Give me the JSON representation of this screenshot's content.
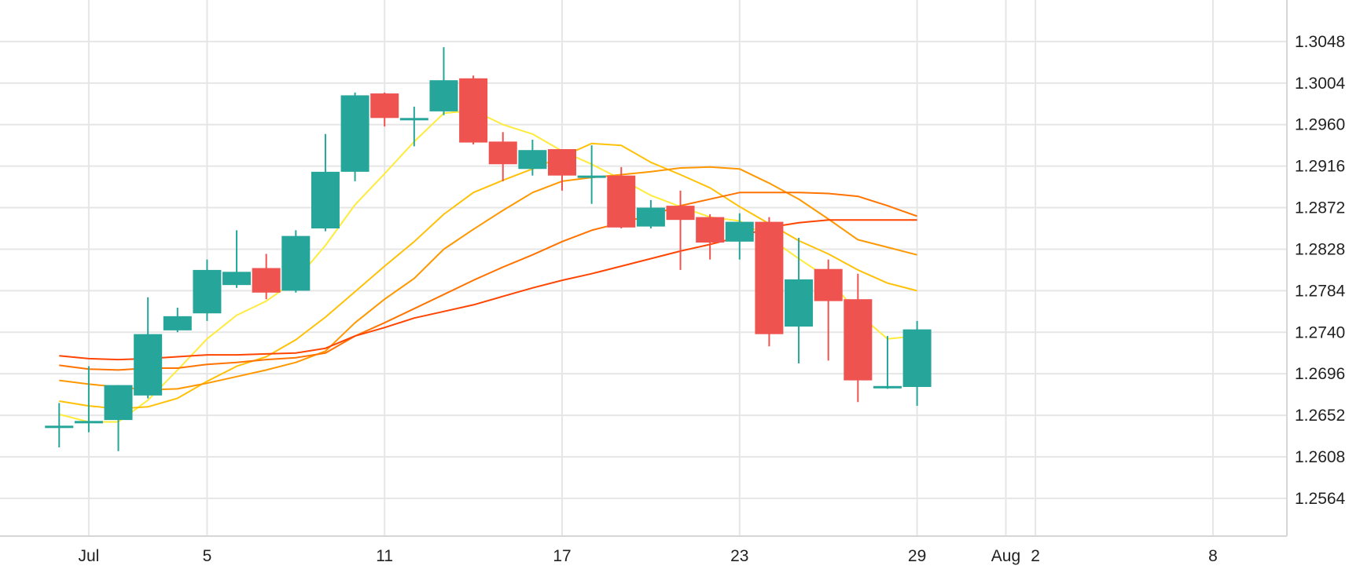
{
  "chart_data": {
    "type": "candlestick",
    "y_ticks": [
      "1.3048",
      "1.3004",
      "1.2960",
      "1.2916",
      "1.2872",
      "1.2828",
      "1.2784",
      "1.2740",
      "1.2696",
      "1.2652",
      "1.2608",
      "1.2564"
    ],
    "ylim": [
      1.2524,
      1.3092
    ],
    "x_ticks": [
      {
        "label": "Jul",
        "day": 1
      },
      {
        "label": "5",
        "day": 5
      },
      {
        "label": "11",
        "day": 11
      },
      {
        "label": "17",
        "day": 17
      },
      {
        "label": "23",
        "day": 23
      },
      {
        "label": "29",
        "day": 29
      },
      {
        "label": "Aug",
        "day": 32
      },
      {
        "label": "2",
        "day": 33
      },
      {
        "label": "8",
        "day": 39
      }
    ],
    "xlim": [
      -2,
      41.5
    ],
    "grid": true,
    "colors": {
      "up": "#26a69a",
      "down": "#ef5350",
      "grid": "#e6e6e6",
      "axis": "#d6d6d6"
    },
    "candles": [
      {
        "day": 0,
        "o": 1.2641,
        "h": 1.2665,
        "l": 1.2618,
        "c": 1.2641
      },
      {
        "day": 1,
        "o": 1.2646,
        "h": 1.2704,
        "l": 1.2634,
        "c": 1.2646
      },
      {
        "day": 2,
        "o": 1.2647,
        "h": 1.2684,
        "l": 1.2614,
        "c": 1.2684
      },
      {
        "day": 3,
        "o": 1.2673,
        "h": 1.2777,
        "l": 1.267,
        "c": 1.2738
      },
      {
        "day": 4,
        "o": 1.2742,
        "h": 1.2766,
        "l": 1.274,
        "c": 1.2757
      },
      {
        "day": 5,
        "o": 1.276,
        "h": 1.2817,
        "l": 1.2752,
        "c": 1.2806
      },
      {
        "day": 6,
        "o": 1.279,
        "h": 1.2848,
        "l": 1.2787,
        "c": 1.2804
      },
      {
        "day": 7,
        "o": 1.2808,
        "h": 1.2823,
        "l": 1.2775,
        "c": 1.2782
      },
      {
        "day": 8,
        "o": 1.2784,
        "h": 1.2848,
        "l": 1.2782,
        "c": 1.2842
      },
      {
        "day": 9,
        "o": 1.285,
        "h": 1.295,
        "l": 1.2847,
        "c": 1.291
      },
      {
        "day": 10,
        "o": 1.291,
        "h": 1.2994,
        "l": 1.29,
        "c": 1.2991
      },
      {
        "day": 11,
        "o": 1.2993,
        "h": 1.2994,
        "l": 1.2958,
        "c": 1.2967
      },
      {
        "day": 12,
        "o": 1.2967,
        "h": 1.2979,
        "l": 1.2937,
        "c": 1.2967
      },
      {
        "day": 13,
        "o": 1.2974,
        "h": 1.3042,
        "l": 1.297,
        "c": 1.3007
      },
      {
        "day": 14,
        "o": 1.3009,
        "h": 1.3012,
        "l": 1.2939,
        "c": 1.2941
      },
      {
        "day": 15,
        "o": 1.2942,
        "h": 1.2952,
        "l": 1.29,
        "c": 1.2918
      },
      {
        "day": 16,
        "o": 1.2913,
        "h": 1.2944,
        "l": 1.2906,
        "c": 1.2933
      },
      {
        "day": 17,
        "o": 1.2934,
        "h": 1.2934,
        "l": 1.289,
        "c": 1.2906
      },
      {
        "day": 18,
        "o": 1.2906,
        "h": 1.2938,
        "l": 1.2876,
        "c": 1.2906
      },
      {
        "day": 19,
        "o": 1.2906,
        "h": 1.2915,
        "l": 1.285,
        "c": 1.2851
      },
      {
        "day": 20,
        "o": 1.2852,
        "h": 1.288,
        "l": 1.285,
        "c": 1.2872
      },
      {
        "day": 21,
        "o": 1.2874,
        "h": 1.289,
        "l": 1.2806,
        "c": 1.2859
      },
      {
        "day": 22,
        "o": 1.2862,
        "h": 1.2865,
        "l": 1.2817,
        "c": 1.2835
      },
      {
        "day": 23,
        "o": 1.2836,
        "h": 1.2866,
        "l": 1.2817,
        "c": 1.2857
      },
      {
        "day": 24,
        "o": 1.2857,
        "h": 1.2862,
        "l": 1.2725,
        "c": 1.2738
      },
      {
        "day": 25,
        "o": 1.2746,
        "h": 1.284,
        "l": 1.2707,
        "c": 1.2796
      },
      {
        "day": 26,
        "o": 1.2807,
        "h": 1.2817,
        "l": 1.271,
        "c": 1.2773
      },
      {
        "day": 27,
        "o": 1.2775,
        "h": 1.2802,
        "l": 1.2666,
        "c": 1.2689
      },
      {
        "day": 28,
        "o": 1.2683,
        "h": 1.2736,
        "l": 1.268,
        "c": 1.2683
      },
      {
        "day": 29,
        "o": 1.2682,
        "h": 1.2752,
        "l": 1.2662,
        "c": 1.2743
      }
    ],
    "moving_averages": [
      {
        "color": "#ffeb3b",
        "points": [
          [
            0,
            1.2653
          ],
          [
            1,
            1.2645
          ],
          [
            2,
            1.2645
          ],
          [
            3,
            1.2668
          ],
          [
            4,
            1.27
          ],
          [
            5,
            1.2733
          ],
          [
            6,
            1.2758
          ],
          [
            7,
            1.2773
          ],
          [
            8,
            1.2795
          ],
          [
            9,
            1.2832
          ],
          [
            10,
            1.2875
          ],
          [
            11,
            1.2908
          ],
          [
            12,
            1.2942
          ],
          [
            13,
            1.2972
          ],
          [
            14,
            1.2975
          ],
          [
            15,
            1.296
          ],
          [
            16,
            1.295
          ],
          [
            17,
            1.2932
          ],
          [
            18,
            1.2918
          ],
          [
            19,
            1.2902
          ],
          [
            20,
            1.2885
          ],
          [
            21,
            1.2873
          ],
          [
            22,
            1.2862
          ],
          [
            23,
            1.2858
          ],
          [
            24,
            1.284
          ],
          [
            25,
            1.2818
          ],
          [
            26,
            1.2797
          ],
          [
            27,
            1.276
          ],
          [
            28,
            1.2733
          ],
          [
            29,
            1.2736
          ]
        ]
      },
      {
        "color": "#ffc107",
        "points": [
          [
            0,
            1.2667
          ],
          [
            1,
            1.2662
          ],
          [
            2,
            1.2659
          ],
          [
            3,
            1.2661
          ],
          [
            4,
            1.267
          ],
          [
            5,
            1.2688
          ],
          [
            6,
            1.2704
          ],
          [
            7,
            1.2714
          ],
          [
            8,
            1.2732
          ],
          [
            9,
            1.2756
          ],
          [
            10,
            1.2783
          ],
          [
            11,
            1.281
          ],
          [
            12,
            1.2836
          ],
          [
            13,
            1.2865
          ],
          [
            14,
            1.2888
          ],
          [
            15,
            1.2901
          ],
          [
            16,
            1.2913
          ],
          [
            17,
            1.2926
          ],
          [
            18,
            1.294
          ],
          [
            19,
            1.2938
          ],
          [
            20,
            1.292
          ],
          [
            21,
            1.2907
          ],
          [
            22,
            1.2893
          ],
          [
            23,
            1.2873
          ],
          [
            24,
            1.2855
          ],
          [
            25,
            1.2837
          ],
          [
            26,
            1.2823
          ],
          [
            27,
            1.2806
          ],
          [
            28,
            1.2792
          ],
          [
            29,
            1.2784
          ]
        ]
      },
      {
        "color": "#ff9800",
        "points": [
          [
            0,
            1.2689
          ],
          [
            1,
            1.2685
          ],
          [
            2,
            1.2682
          ],
          [
            3,
            1.2679
          ],
          [
            4,
            1.268
          ],
          [
            5,
            1.2686
          ],
          [
            6,
            1.2693
          ],
          [
            7,
            1.27
          ],
          [
            8,
            1.2708
          ],
          [
            9,
            1.272
          ],
          [
            10,
            1.275
          ],
          [
            11,
            1.2775
          ],
          [
            12,
            1.2797
          ],
          [
            13,
            1.2828
          ],
          [
            14,
            1.2849
          ],
          [
            15,
            1.2869
          ],
          [
            16,
            1.2888
          ],
          [
            17,
            1.29
          ],
          [
            18,
            1.2904
          ],
          [
            19,
            1.2907
          ],
          [
            20,
            1.291
          ],
          [
            21,
            1.2914
          ],
          [
            22,
            1.2915
          ],
          [
            23,
            1.2913
          ],
          [
            24,
            1.2898
          ],
          [
            25,
            1.2881
          ],
          [
            26,
            1.286
          ],
          [
            27,
            1.2838
          ],
          [
            28,
            1.283
          ],
          [
            29,
            1.2822
          ]
        ]
      },
      {
        "color": "#ff7300",
        "points": [
          [
            0,
            1.2705
          ],
          [
            1,
            1.2701
          ],
          [
            2,
            1.27
          ],
          [
            3,
            1.2702
          ],
          [
            4,
            1.2702
          ],
          [
            5,
            1.2706
          ],
          [
            6,
            1.2708
          ],
          [
            7,
            1.2711
          ],
          [
            8,
            1.2713
          ],
          [
            9,
            1.2718
          ],
          [
            10,
            1.2736
          ],
          [
            11,
            1.275
          ],
          [
            12,
            1.2765
          ],
          [
            13,
            1.278
          ],
          [
            14,
            1.2795
          ],
          [
            15,
            1.2809
          ],
          [
            16,
            1.2822
          ],
          [
            17,
            1.2836
          ],
          [
            18,
            1.2848
          ],
          [
            19,
            1.2856
          ],
          [
            20,
            1.2864
          ],
          [
            21,
            1.2874
          ],
          [
            22,
            1.2881
          ],
          [
            23,
            1.2888
          ],
          [
            24,
            1.2888
          ],
          [
            25,
            1.2888
          ],
          [
            26,
            1.2887
          ],
          [
            27,
            1.2884
          ],
          [
            28,
            1.2874
          ],
          [
            29,
            1.2863
          ]
        ]
      },
      {
        "color": "#ff4500",
        "points": [
          [
            0,
            1.2715
          ],
          [
            1,
            1.2712
          ],
          [
            2,
            1.2711
          ],
          [
            3,
            1.2712
          ],
          [
            4,
            1.2714
          ],
          [
            5,
            1.2716
          ],
          [
            6,
            1.2716
          ],
          [
            7,
            1.2717
          ],
          [
            8,
            1.2718
          ],
          [
            9,
            1.2723
          ],
          [
            10,
            1.2736
          ],
          [
            11,
            1.2745
          ],
          [
            12,
            1.2755
          ],
          [
            13,
            1.2762
          ],
          [
            14,
            1.2769
          ],
          [
            15,
            1.2778
          ],
          [
            16,
            1.2787
          ],
          [
            17,
            1.2795
          ],
          [
            18,
            1.2802
          ],
          [
            19,
            1.281
          ],
          [
            20,
            1.2818
          ],
          [
            21,
            1.2826
          ],
          [
            22,
            1.2833
          ],
          [
            23,
            1.2841
          ],
          [
            24,
            1.2851
          ],
          [
            25,
            1.2856
          ],
          [
            26,
            1.2859
          ],
          [
            27,
            1.2859
          ],
          [
            28,
            1.2859
          ],
          [
            29,
            1.2859
          ]
        ]
      }
    ]
  }
}
